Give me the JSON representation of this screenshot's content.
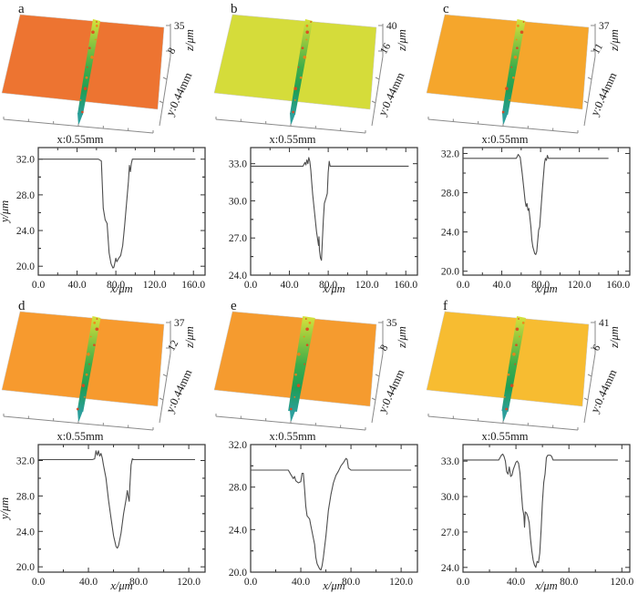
{
  "styles": {
    "curve_color": "#4d4d4d",
    "axis_color": "#333333",
    "groove_gradient": [
      "#d8e23c",
      "#8cc63f",
      "#3fae49",
      "#1f9e55",
      "#2b9f9b"
    ],
    "speckle_colors": [
      "#e2431e",
      "#f57f17"
    ]
  },
  "figure": {
    "panels": [
      {
        "letter": "a",
        "surface": {
          "base_color": "#ED7431",
          "x_axis_label": "x:0.55mm",
          "y_axis_label": "y:0.44mm",
          "z_axis_label": "z/μm",
          "z_tick_max": "35",
          "z_tick_min": "8"
        }
      },
      {
        "letter": "b",
        "surface": {
          "base_color": "#D5DC3A",
          "x_axis_label": "x:0.55mm",
          "y_axis_label": "y:0.44mm",
          "z_axis_label": "z/μm",
          "z_tick_max": "40",
          "z_tick_min": "16"
        }
      },
      {
        "letter": "c",
        "surface": {
          "base_color": "#F5A62C",
          "x_axis_label": "x:0.55mm",
          "y_axis_label": "y:0.44mm",
          "z_axis_label": "z/μm",
          "z_tick_max": "37",
          "z_tick_min": "11"
        }
      },
      {
        "letter": "d",
        "surface": {
          "base_color": "#F79A2E",
          "x_axis_label": "x:0.55mm",
          "y_axis_label": "y:0.44mm",
          "z_axis_label": "z/μm",
          "z_tick_max": "37",
          "z_tick_min": "12"
        }
      },
      {
        "letter": "e",
        "surface": {
          "base_color": "#F59B2F",
          "x_axis_label": "x:0.55mm",
          "y_axis_label": "y:0.44mm",
          "z_axis_label": "z/μm",
          "z_tick_max": "35",
          "z_tick_min": "8"
        }
      },
      {
        "letter": "f",
        "surface": {
          "base_color": "#F7BC31",
          "x_axis_label": "x:0.55mm",
          "y_axis_label": "y:0.44mm",
          "z_axis_label": "z/μm",
          "z_tick_max": "41",
          "z_tick_min": "6"
        }
      }
    ]
  },
  "chart_data": [
    {
      "panel": "a",
      "type": "line",
      "xlabel": "x/μm",
      "ylabel": "y/μm",
      "xlim": [
        0,
        172
      ],
      "ylim": [
        19.0,
        33.3
      ],
      "xticks": [
        0,
        40,
        80,
        120,
        160
      ],
      "yticks": [
        20,
        24,
        28,
        32
      ],
      "x": [
        0,
        62,
        65,
        67,
        69,
        71,
        73,
        75,
        77,
        78,
        80,
        81,
        83,
        85,
        87,
        89,
        91,
        93,
        94,
        95,
        96,
        97,
        99,
        162
      ],
      "y": [
        32,
        32,
        31.8,
        26.5,
        25.2,
        24.8,
        21.5,
        20.3,
        19.8,
        19.9,
        20.9,
        20.5,
        20.9,
        21.2,
        22.3,
        24.5,
        27,
        29.5,
        31.3,
        30.6,
        31.5,
        32,
        32,
        32
      ]
    },
    {
      "panel": "b",
      "type": "line",
      "xlabel": "x/μm",
      "ylabel": "",
      "xlim": [
        0,
        172
      ],
      "ylim": [
        24.0,
        34.3
      ],
      "xticks": [
        0,
        40,
        80,
        120,
        160
      ],
      "yticks": [
        24,
        27,
        30,
        33
      ],
      "x": [
        0,
        54,
        56,
        57,
        58,
        59,
        60,
        61,
        62,
        63,
        64,
        66,
        68,
        70,
        70.5,
        71,
        72,
        73,
        74,
        75,
        76,
        78,
        79,
        80,
        81,
        82,
        83,
        163
      ],
      "y": [
        32.8,
        32.8,
        33.1,
        32.9,
        33.3,
        33.0,
        33.5,
        33.2,
        32.5,
        31.5,
        30.5,
        29,
        27.5,
        26.4,
        27.1,
        26.0,
        25.4,
        25.2,
        26.8,
        28.5,
        29.8,
        30.3,
        30.6,
        32.3,
        33.2,
        32.8,
        32.8,
        32.8
      ]
    },
    {
      "panel": "c",
      "type": "line",
      "xlabel": "x/μm",
      "ylabel": "",
      "xlim": [
        0,
        172
      ],
      "ylim": [
        19.6,
        32.6
      ],
      "xticks": [
        0,
        40,
        80,
        120,
        160
      ],
      "yticks": [
        20,
        24,
        28,
        32
      ],
      "x": [
        0,
        55,
        57,
        59,
        61,
        63,
        64,
        65,
        66,
        67,
        68,
        70,
        71,
        72,
        74,
        75,
        76,
        78,
        79,
        80,
        82,
        84,
        85,
        86,
        87,
        88,
        89,
        150
      ],
      "y": [
        31.5,
        31.5,
        31.9,
        31.6,
        30,
        28.2,
        27.2,
        26.6,
        26.9,
        26.2,
        26.4,
        24.5,
        23.2,
        22.5,
        21.8,
        21.7,
        22,
        24.2,
        24.5,
        25.8,
        28.5,
        31,
        31.5,
        31.3,
        31.8,
        31.5,
        31.5,
        31.5
      ]
    },
    {
      "panel": "d",
      "type": "line",
      "xlabel": "x/μm",
      "ylabel": "y/μm",
      "xlim": [
        0,
        133
      ],
      "ylim": [
        19.4,
        33.8
      ],
      "xticks": [
        0,
        40,
        80,
        120
      ],
      "yticks": [
        20,
        24,
        28,
        32
      ],
      "x": [
        0,
        43,
        45,
        46,
        47,
        48,
        49,
        50,
        51,
        52,
        54,
        56,
        58,
        60,
        62,
        63,
        64,
        66,
        68,
        70,
        71,
        72,
        72.5,
        73,
        74,
        75,
        76,
        125
      ],
      "y": [
        32.1,
        32.1,
        32.2,
        33.1,
        32.6,
        33.1,
        32.5,
        32.8,
        32.3,
        31.5,
        30,
        27.5,
        25.5,
        23.5,
        22.3,
        22.1,
        22.4,
        23.8,
        26,
        27.6,
        28.6,
        27.7,
        27.4,
        29,
        31.5,
        32.2,
        32.1,
        32.1
      ]
    },
    {
      "panel": "e",
      "type": "line",
      "xlabel": "x/μm",
      "ylabel": "",
      "xlim": [
        0,
        133
      ],
      "ylim": [
        20.0,
        32.0
      ],
      "xticks": [
        0,
        40,
        80,
        120
      ],
      "yticks": [
        20,
        24,
        28,
        32
      ],
      "x": [
        0,
        30,
        32,
        34,
        35,
        36,
        38,
        40,
        41,
        42,
        43,
        44,
        45,
        47,
        48,
        50,
        51,
        52,
        53,
        55,
        56,
        57,
        58,
        60,
        62,
        64,
        66,
        68,
        70,
        72,
        74,
        75,
        76,
        77,
        78,
        80,
        128
      ],
      "y": [
        29.6,
        29.6,
        29.2,
        28.8,
        29.0,
        28.6,
        28.4,
        28.5,
        29.3,
        29.3,
        27.8,
        26.2,
        25.3,
        25.0,
        24.4,
        23.2,
        22.6,
        21.4,
        20.8,
        20.3,
        20.2,
        20.6,
        21.4,
        23.4,
        25.8,
        27.3,
        28.4,
        29.1,
        29.5,
        30.0,
        30.3,
        30.5,
        30.7,
        30.6,
        29.8,
        29.6,
        29.6
      ]
    },
    {
      "panel": "f",
      "type": "line",
      "xlabel": "x/μm",
      "ylabel": "",
      "xlim": [
        0,
        126
      ],
      "ylim": [
        23.6,
        34.4
      ],
      "xticks": [
        0,
        40,
        80,
        120
      ],
      "yticks": [
        24,
        27,
        30,
        33
      ],
      "x": [
        0,
        27,
        28,
        29,
        30,
        31,
        32,
        33,
        34,
        35,
        36,
        37,
        38,
        40,
        41,
        42,
        43,
        44,
        45,
        46,
        46.5,
        47,
        48,
        49,
        50,
        51,
        52,
        53,
        54,
        55,
        56,
        57,
        58,
        59,
        60,
        61,
        62,
        63,
        64,
        66,
        67,
        68,
        117
      ],
      "y": [
        33.1,
        33.1,
        33.3,
        33.5,
        33.6,
        33.4,
        33.0,
        32.1,
        31.9,
        32.5,
        31.7,
        31.8,
        32.3,
        32.9,
        33.0,
        32.8,
        32.0,
        30.5,
        29.0,
        28.4,
        27.4,
        28.7,
        28.6,
        28.3,
        27.8,
        26.4,
        25.4,
        24.6,
        24.2,
        24.0,
        24.5,
        24.4,
        25.2,
        27.2,
        29.5,
        31.2,
        31.9,
        33.3,
        33.5,
        33.5,
        33.4,
        33.1,
        33.1
      ]
    }
  ]
}
